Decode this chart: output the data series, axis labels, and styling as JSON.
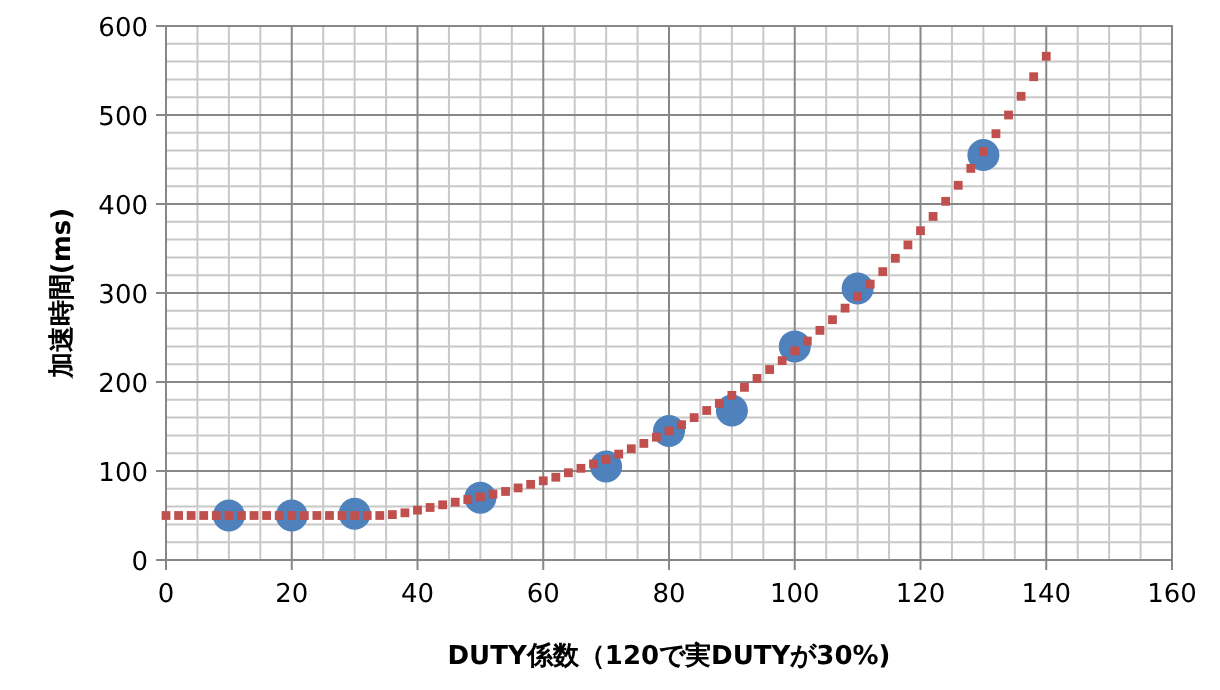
{
  "chart_data": {
    "type": "scatter",
    "xlabel": "DUTY係数（120で実DUTYが30%)",
    "ylabel": "加速時間(ms)",
    "xlim": [
      0,
      160
    ],
    "xticks": [
      0,
      20,
      40,
      60,
      80,
      100,
      120,
      140,
      160
    ],
    "ylim": [
      0,
      600
    ],
    "yticks": [
      0,
      100,
      200,
      300,
      400,
      500,
      600
    ],
    "grid": true,
    "series": [
      {
        "marker": "circle",
        "color": "#4f81bd",
        "x": [
          10,
          20,
          30,
          50,
          70,
          80,
          90,
          100,
          110,
          130
        ],
        "values": [
          50,
          50,
          52,
          70,
          105,
          145,
          168,
          240,
          305,
          455
        ]
      },
      {
        "marker": "square",
        "color": "#c0504d",
        "x": [
          0,
          2,
          4,
          6,
          8,
          10,
          12,
          14,
          16,
          18,
          20,
          22,
          24,
          26,
          28,
          30,
          32,
          34,
          36,
          38,
          40,
          42,
          44,
          46,
          48,
          50,
          52,
          54,
          56,
          58,
          60,
          62,
          64,
          66,
          68,
          70,
          72,
          74,
          76,
          78,
          80,
          82,
          84,
          86,
          88,
          90,
          92,
          94,
          96,
          98,
          100,
          102,
          104,
          106,
          108,
          110,
          112,
          114,
          116,
          118,
          120,
          122,
          124,
          126,
          128,
          130,
          132,
          134,
          136,
          138,
          140
        ],
        "values": [
          50,
          50,
          50,
          50,
          50,
          50,
          50,
          50,
          50,
          50,
          50,
          50,
          50,
          50,
          50,
          50,
          50,
          50,
          51,
          53,
          56,
          59,
          62,
          65,
          68,
          71,
          74,
          77,
          81,
          85,
          89,
          93,
          98,
          103,
          108,
          113,
          119,
          125,
          131,
          138,
          145,
          152,
          160,
          168,
          176,
          185,
          194,
          204,
          214,
          224,
          235,
          246,
          258,
          270,
          283,
          296,
          310,
          324,
          339,
          354,
          370,
          386,
          403,
          421,
          440,
          459,
          479,
          500,
          521,
          543,
          566
        ]
      }
    ]
  }
}
